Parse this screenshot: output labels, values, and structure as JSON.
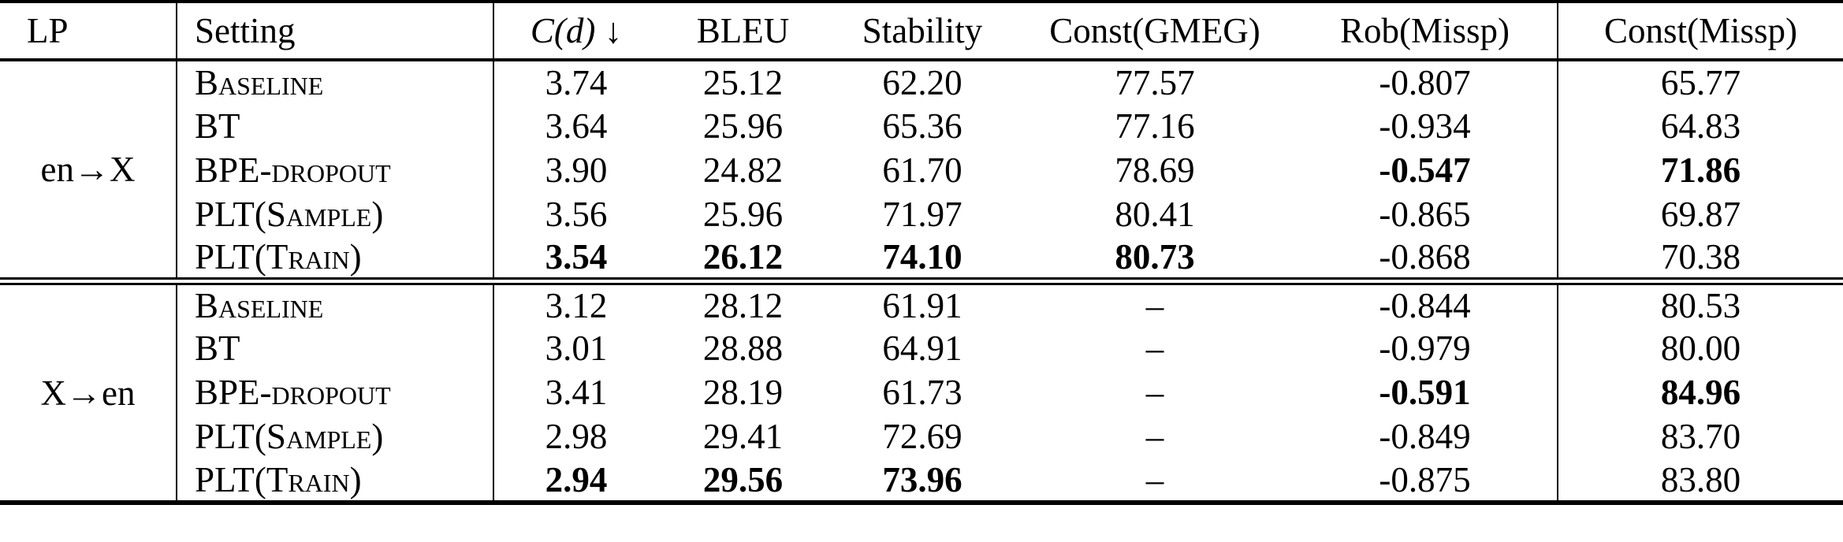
{
  "table": {
    "headers": [
      {
        "label": "LP"
      },
      {
        "label": "Setting"
      },
      {
        "math": "C(d)",
        "suffix": " ↓"
      },
      {
        "label": "BLEU"
      },
      {
        "label": "Stability"
      },
      {
        "label": "Const(GMEG)"
      },
      {
        "label": "Rob(Missp)"
      },
      {
        "label": "Const(Missp)"
      }
    ],
    "blocks": [
      {
        "lp": "en→X",
        "rows": [
          {
            "setting": "Baseline",
            "values": [
              {
                "v": "3.74"
              },
              {
                "v": "25.12"
              },
              {
                "v": "62.20"
              },
              {
                "v": "77.57"
              },
              {
                "v": "-0.807"
              },
              {
                "v": "65.77"
              }
            ]
          },
          {
            "setting": "BT",
            "values": [
              {
                "v": "3.64"
              },
              {
                "v": "25.96"
              },
              {
                "v": "65.36"
              },
              {
                "v": "77.16"
              },
              {
                "v": "-0.934"
              },
              {
                "v": "64.83"
              }
            ]
          },
          {
            "setting": "BPE-dropout",
            "values": [
              {
                "v": "3.90"
              },
              {
                "v": "24.82"
              },
              {
                "v": "61.70"
              },
              {
                "v": "78.69"
              },
              {
                "v": "-0.547",
                "b": true
              },
              {
                "v": "71.86",
                "b": true
              }
            ]
          },
          {
            "setting": "PLT(Sample)",
            "values": [
              {
                "v": "3.56"
              },
              {
                "v": "25.96"
              },
              {
                "v": "71.97"
              },
              {
                "v": "80.41"
              },
              {
                "v": "-0.865"
              },
              {
                "v": "69.87"
              }
            ]
          },
          {
            "setting": "PLT(Train)",
            "values": [
              {
                "v": "3.54",
                "b": true
              },
              {
                "v": "26.12",
                "b": true
              },
              {
                "v": "74.10",
                "b": true
              },
              {
                "v": "80.73",
                "b": true
              },
              {
                "v": "-0.868"
              },
              {
                "v": "70.38"
              }
            ]
          }
        ]
      },
      {
        "lp": "X→en",
        "rows": [
          {
            "setting": "Baseline",
            "values": [
              {
                "v": "3.12"
              },
              {
                "v": "28.12"
              },
              {
                "v": "61.91"
              },
              {
                "v": "–"
              },
              {
                "v": "-0.844"
              },
              {
                "v": "80.53"
              }
            ]
          },
          {
            "setting": "BT",
            "values": [
              {
                "v": "3.01"
              },
              {
                "v": "28.88"
              },
              {
                "v": "64.91"
              },
              {
                "v": "–"
              },
              {
                "v": "-0.979"
              },
              {
                "v": "80.00"
              }
            ]
          },
          {
            "setting": "BPE-dropout",
            "values": [
              {
                "v": "3.41"
              },
              {
                "v": "28.19"
              },
              {
                "v": "61.73"
              },
              {
                "v": "–"
              },
              {
                "v": "-0.591",
                "b": true
              },
              {
                "v": "84.96",
                "b": true
              }
            ]
          },
          {
            "setting": "PLT(Sample)",
            "values": [
              {
                "v": "2.98"
              },
              {
                "v": "29.41"
              },
              {
                "v": "72.69"
              },
              {
                "v": "–"
              },
              {
                "v": "-0.849"
              },
              {
                "v": "83.70"
              }
            ]
          },
          {
            "setting": "PLT(Train)",
            "values": [
              {
                "v": "2.94",
                "b": true
              },
              {
                "v": "29.56",
                "b": true
              },
              {
                "v": "73.96",
                "b": true
              },
              {
                "v": "–"
              },
              {
                "v": "-0.875"
              },
              {
                "v": "83.80"
              }
            ]
          }
        ]
      }
    ],
    "colors": {
      "text": "#000000",
      "background": "#ffffff",
      "rule": "#000000"
    }
  }
}
